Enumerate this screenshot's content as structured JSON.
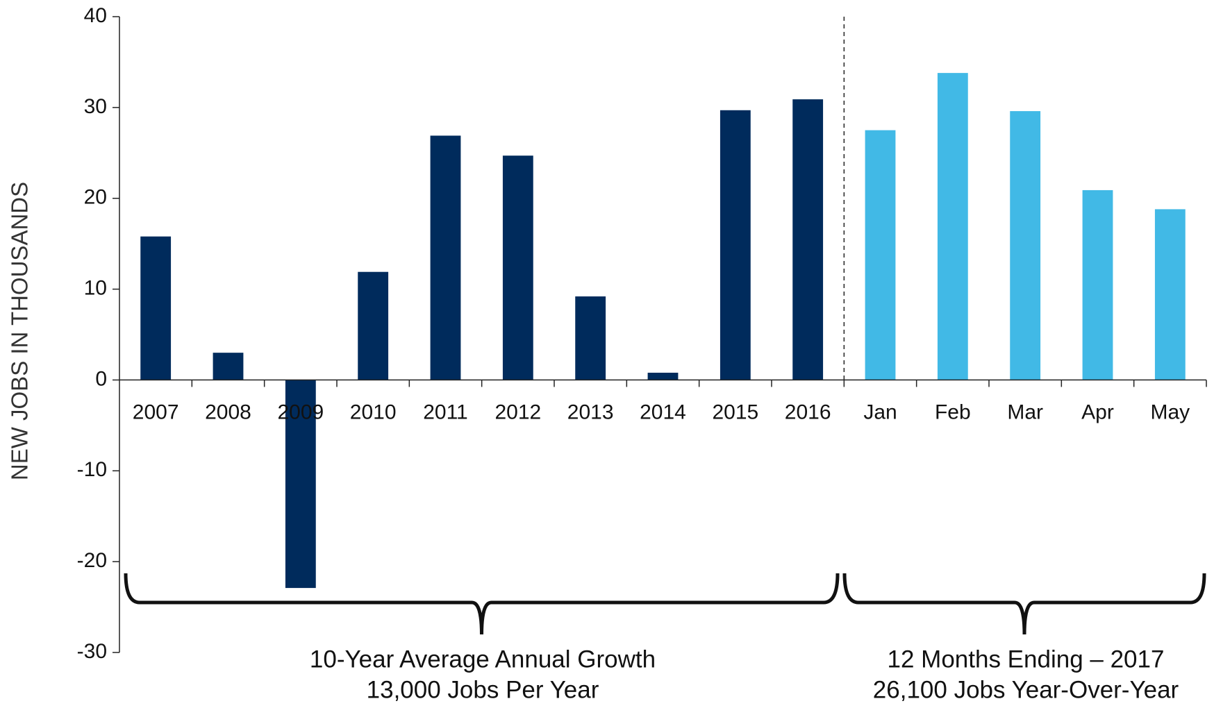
{
  "chart_data": {
    "type": "bar",
    "y_label": "NEW JOBS IN THOUSANDS",
    "categories": [
      "2007",
      "2008",
      "2009",
      "2010",
      "2011",
      "2012",
      "2013",
      "2014",
      "2015",
      "2016",
      "Jan",
      "Feb",
      "Mar",
      "Apr",
      "May"
    ],
    "values": [
      15.8,
      3,
      -22.9,
      11.9,
      26.9,
      24.7,
      9.2,
      0.8,
      29.7,
      30.9,
      27.5,
      33.8,
      29.6,
      20.9,
      18.8
    ],
    "colors": [
      "#002b5c",
      "#002b5c",
      "#002b5c",
      "#002b5c",
      "#002b5c",
      "#002b5c",
      "#002b5c",
      "#002b5c",
      "#002b5c",
      "#002b5c",
      "#41b9e6",
      "#41b9e6",
      "#41b9e6",
      "#41b9e6",
      "#41b9e6"
    ],
    "ylim": [
      -30,
      40
    ],
    "yticks": [
      -30,
      -20,
      -10,
      0,
      10,
      20,
      30,
      40
    ],
    "grid": false,
    "annotations": [
      [
        "10-Year Average Annual Growth",
        "13,000 Jobs Per Year"
      ],
      [
        "12 Months Ending – 2017",
        "26,100 Jobs Year-Over-Year"
      ]
    ]
  }
}
